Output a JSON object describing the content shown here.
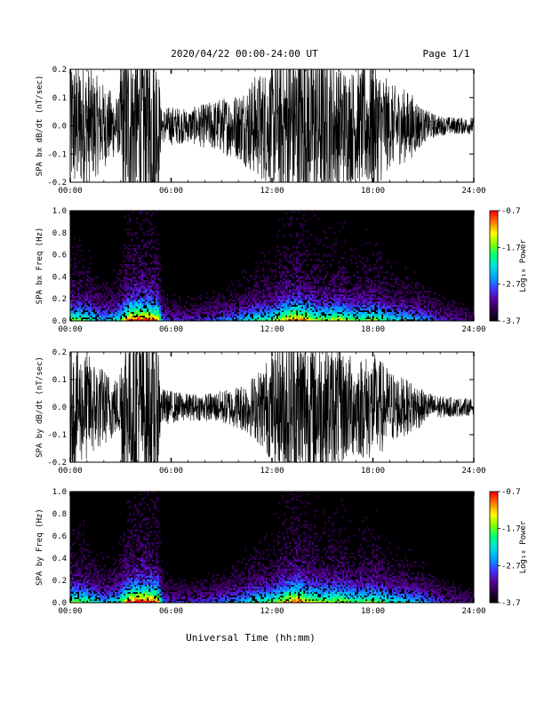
{
  "header": {
    "title": "2020/04/22  00:00-24:00 UT",
    "page": "Page 1/1"
  },
  "footer": {
    "xlabel": "Universal Time (hh:mm)"
  },
  "colors": {
    "background": "#ffffff",
    "trace": "#000000",
    "spectrogram_background": "#000000",
    "colormap": [
      "#000000",
      "#2a0040",
      "#5a00a0",
      "#3a3aff",
      "#00a0ff",
      "#00e0e0",
      "#00ff80",
      "#80ff00",
      "#ffff00",
      "#ff8000",
      "#ff0000"
    ]
  },
  "chart_data": [
    {
      "type": "line",
      "ylabel": "SPA bx dB/dt (nT/sec)",
      "xlim": [
        0,
        24
      ],
      "ylim": [
        -0.2,
        0.2
      ],
      "x_tick_labels": [
        "00:00",
        "06:00",
        "12:00",
        "18:00",
        "24:00"
      ],
      "y_tick_labels": [
        "-0.2",
        "-0.1",
        "0.0",
        "0.1",
        "0.2"
      ],
      "y_ticks": [
        -0.2,
        -0.1,
        0.0,
        0.1,
        0.2
      ],
      "envelope": {
        "x": [
          0,
          1,
          2,
          2.9,
          3.1,
          4.0,
          5.2,
          5.4,
          6,
          7,
          8,
          9,
          10,
          11,
          12,
          13,
          14,
          15,
          16,
          17,
          18,
          19,
          20,
          20.6,
          21,
          22,
          23,
          24
        ],
        "amplitude": [
          0.25,
          0.22,
          0.15,
          0.1,
          0.3,
          0.3,
          0.3,
          0.06,
          0.07,
          0.06,
          0.08,
          0.1,
          0.12,
          0.18,
          0.22,
          0.3,
          0.3,
          0.28,
          0.22,
          0.2,
          0.25,
          0.15,
          0.13,
          0.1,
          0.06,
          0.035,
          0.03,
          0.03
        ]
      }
    },
    {
      "type": "heatmap",
      "ylabel": "SPA bx Freq (Hz)",
      "xlim": [
        0,
        24
      ],
      "ylim": [
        0,
        1.0
      ],
      "x_tick_labels": [
        "00:00",
        "06:00",
        "12:00",
        "18:00",
        "24:00"
      ],
      "y_tick_labels": [
        "0.0",
        "0.2",
        "0.4",
        "0.6",
        "0.8",
        "1.0"
      ],
      "y_ticks": [
        0.0,
        0.2,
        0.4,
        0.6,
        0.8,
        1.0
      ],
      "colorbar": {
        "label": "Log₁₀ Power",
        "tick_labels": [
          "-0.7",
          "-1.7",
          "-2.7",
          "-3.7"
        ],
        "range": [
          -3.7,
          -0.7
        ]
      },
      "activity": {
        "x": [
          0,
          1,
          2,
          2.9,
          3.5,
          4.5,
          5.2,
          5.5,
          6,
          7,
          8,
          9,
          10,
          11,
          12,
          13,
          13.5,
          14,
          15,
          16,
          17,
          18,
          19,
          20,
          21,
          22,
          23,
          24
        ],
        "level": [
          0.5,
          0.45,
          0.3,
          0.4,
          0.7,
          0.75,
          0.65,
          0.25,
          0.2,
          0.18,
          0.2,
          0.25,
          0.3,
          0.4,
          0.45,
          0.65,
          0.7,
          0.6,
          0.5,
          0.55,
          0.45,
          0.5,
          0.4,
          0.35,
          0.3,
          0.2,
          0.15,
          0.12
        ]
      }
    },
    {
      "type": "line",
      "ylabel": "SPA by dB/dt (nT/sec)",
      "xlim": [
        0,
        24
      ],
      "ylim": [
        -0.2,
        0.2
      ],
      "x_tick_labels": [
        "00:00",
        "06:00",
        "12:00",
        "18:00",
        "24:00"
      ],
      "y_tick_labels": [
        "-0.2",
        "-0.1",
        "0.0",
        "0.1",
        "0.2"
      ],
      "y_ticks": [
        -0.2,
        -0.1,
        0.0,
        0.1,
        0.2
      ],
      "envelope": {
        "x": [
          0,
          1,
          2,
          2.9,
          3.1,
          4.0,
          5.2,
          5.4,
          6,
          7,
          8,
          9,
          10,
          11,
          12,
          13,
          14,
          15,
          16,
          17,
          18,
          19,
          20,
          20.6,
          21,
          22,
          23,
          24
        ],
        "amplitude": [
          0.22,
          0.2,
          0.14,
          0.1,
          0.3,
          0.3,
          0.3,
          0.07,
          0.06,
          0.05,
          0.05,
          0.06,
          0.08,
          0.12,
          0.2,
          0.3,
          0.28,
          0.25,
          0.22,
          0.18,
          0.2,
          0.14,
          0.1,
          0.09,
          0.06,
          0.04,
          0.035,
          0.03
        ]
      }
    },
    {
      "type": "heatmap",
      "ylabel": "SPA by Freq (Hz)",
      "xlim": [
        0,
        24
      ],
      "ylim": [
        0,
        1.0
      ],
      "x_tick_labels": [
        "00:00",
        "06:00",
        "12:00",
        "18:00",
        "24:00"
      ],
      "y_tick_labels": [
        "0.0",
        "0.2",
        "0.4",
        "0.6",
        "0.8",
        "1.0"
      ],
      "y_ticks": [
        0.0,
        0.2,
        0.4,
        0.6,
        0.8,
        1.0
      ],
      "colorbar": {
        "label": "Log₁₀ Power",
        "tick_labels": [
          "-0.7",
          "-1.7",
          "-2.7",
          "-3.7"
        ],
        "range": [
          -3.7,
          -0.7
        ]
      },
      "activity": {
        "x": [
          0,
          1,
          2,
          2.9,
          3.5,
          4.5,
          5.2,
          5.5,
          6,
          7,
          8,
          9,
          10,
          11,
          12,
          13,
          13.5,
          14,
          15,
          16,
          17,
          18,
          19,
          20,
          21,
          22,
          23,
          24
        ],
        "level": [
          0.5,
          0.45,
          0.3,
          0.4,
          0.7,
          0.75,
          0.65,
          0.25,
          0.2,
          0.18,
          0.2,
          0.25,
          0.3,
          0.4,
          0.45,
          0.65,
          0.7,
          0.6,
          0.5,
          0.55,
          0.45,
          0.5,
          0.4,
          0.35,
          0.3,
          0.2,
          0.15,
          0.12
        ]
      }
    }
  ]
}
